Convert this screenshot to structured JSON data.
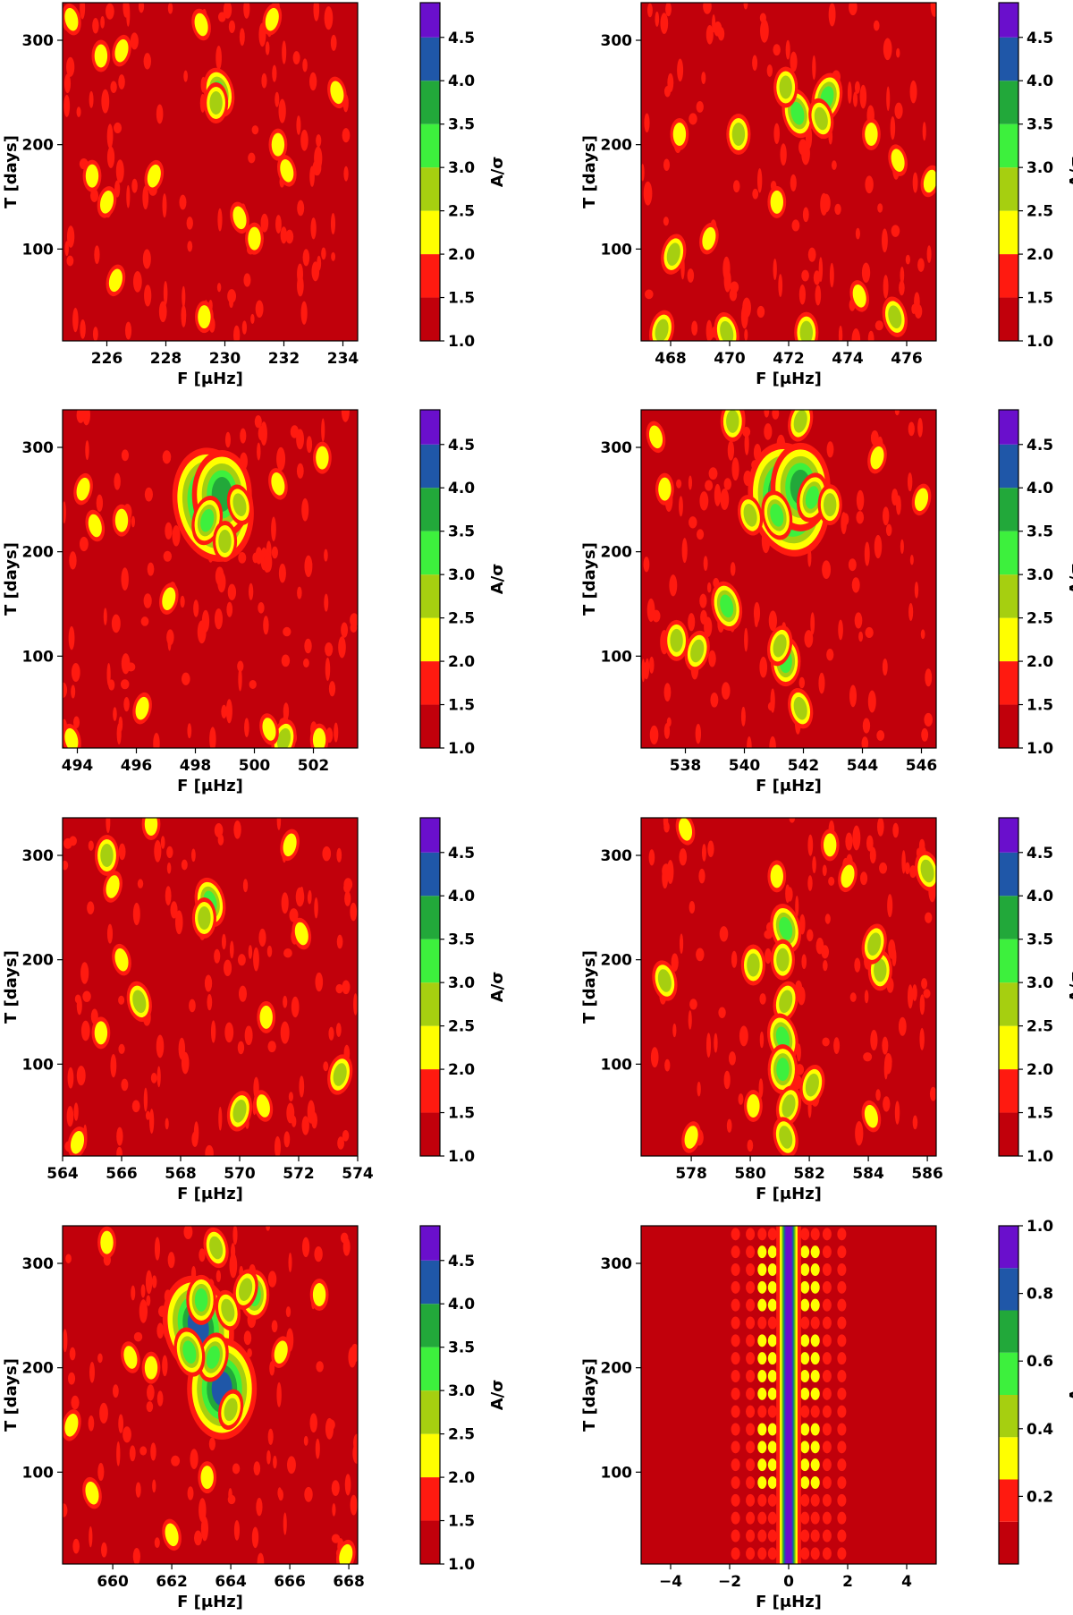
{
  "palette": {
    "background": "#c1000b",
    "sigma_levels": [
      "#c1000b",
      "#ff1a10",
      "#ffff00",
      "#a6cf10",
      "#3df03d",
      "#22a83a",
      "#1f57a8",
      "#6a0fcc"
    ],
    "amp_levels": [
      "#c1000b",
      "#ff1a10",
      "#ffff00",
      "#a6cf10",
      "#3df03d",
      "#22a83a",
      "#1f57a8",
      "#6a0fcc"
    ]
  },
  "chart_data": [
    {
      "type": "heatmap",
      "xlabel": "F [μHz]",
      "ylabel": "T [days]",
      "colorbar_label": "A/σ",
      "xlim": [
        224.5,
        234.5
      ],
      "ylim": [
        12,
        336
      ],
      "xticks": [
        "226",
        "228",
        "230",
        "232",
        "234"
      ],
      "yticks": [
        "100",
        "200",
        "300"
      ],
      "colorbar_range": [
        1.0,
        4.9
      ],
      "colorbar_ticks": [
        "1.0",
        "1.5",
        "2.0",
        "2.5",
        "3.0",
        "3.5",
        "4.0",
        "4.5"
      ],
      "blobs": [
        {
          "f": 229.8,
          "t": 250,
          "level": 4
        },
        {
          "f": 229.7,
          "t": 240,
          "level": 3
        },
        {
          "f": 231.6,
          "t": 320,
          "level": 2
        },
        {
          "f": 229.2,
          "t": 315,
          "level": 2
        },
        {
          "f": 225.5,
          "t": 170,
          "level": 2
        },
        {
          "f": 226.0,
          "t": 145,
          "level": 2
        },
        {
          "f": 232.1,
          "t": 175,
          "level": 2
        },
        {
          "f": 229.3,
          "t": 35,
          "level": 2
        },
        {
          "f": 226.3,
          "t": 70,
          "level": 2
        },
        {
          "f": 224.8,
          "t": 320,
          "level": 2
        },
        {
          "f": 225.8,
          "t": 285,
          "level": 2
        },
        {
          "f": 226.5,
          "t": 290,
          "level": 2
        },
        {
          "f": 230.5,
          "t": 130,
          "level": 2
        },
        {
          "f": 231.0,
          "t": 110,
          "level": 2
        },
        {
          "f": 227.6,
          "t": 170,
          "level": 2
        },
        {
          "f": 233.8,
          "t": 250,
          "level": 2
        },
        {
          "f": 231.8,
          "t": 200,
          "level": 2
        }
      ]
    },
    {
      "type": "heatmap",
      "xlabel": "F [μHz]",
      "ylabel": "T [days]",
      "colorbar_label": "A/σ",
      "xlim": [
        467.0,
        477.0
      ],
      "ylim": [
        12,
        336
      ],
      "xticks": [
        "468",
        "470",
        "472",
        "474",
        "476"
      ],
      "yticks": [
        "100",
        "200",
        "300"
      ],
      "colorbar_range": [
        1.0,
        4.9
      ],
      "colorbar_ticks": [
        "1.0",
        "1.5",
        "2.0",
        "2.5",
        "3.0",
        "3.5",
        "4.0",
        "4.5"
      ],
      "blobs": [
        {
          "f": 472.3,
          "t": 230,
          "level": 4
        },
        {
          "f": 471.9,
          "t": 255,
          "level": 3
        },
        {
          "f": 473.3,
          "t": 245,
          "level": 4
        },
        {
          "f": 473.1,
          "t": 225,
          "level": 3
        },
        {
          "f": 472.6,
          "t": 20,
          "level": 3
        },
        {
          "f": 467.7,
          "t": 22,
          "level": 3
        },
        {
          "f": 469.9,
          "t": 20,
          "level": 3
        },
        {
          "f": 470.3,
          "t": 210,
          "level": 3
        },
        {
          "f": 468.1,
          "t": 95,
          "level": 3
        },
        {
          "f": 475.6,
          "t": 35,
          "level": 3
        },
        {
          "f": 471.6,
          "t": 145,
          "level": 2
        },
        {
          "f": 476.8,
          "t": 165,
          "level": 2
        },
        {
          "f": 475.7,
          "t": 185,
          "level": 2
        },
        {
          "f": 474.8,
          "t": 210,
          "level": 2
        },
        {
          "f": 469.3,
          "t": 110,
          "level": 2
        },
        {
          "f": 474.4,
          "t": 55,
          "level": 2
        },
        {
          "f": 468.3,
          "t": 210,
          "level": 2
        }
      ]
    },
    {
      "type": "heatmap",
      "xlabel": "F [μHz]",
      "ylabel": "T [days]",
      "colorbar_label": "A/σ",
      "xlim": [
        493.5,
        503.5
      ],
      "ylim": [
        12,
        336
      ],
      "xticks": [
        "494",
        "496",
        "498",
        "500",
        "502"
      ],
      "yticks": [
        "100",
        "200",
        "300"
      ],
      "colorbar_range": [
        1.0,
        4.9
      ],
      "colorbar_ticks": [
        "1.0",
        "1.5",
        "2.0",
        "2.5",
        "3.0",
        "3.5",
        "4.0",
        "4.5"
      ],
      "blobs": [
        {
          "f": 498.6,
          "t": 245,
          "level": 7
        },
        {
          "f": 498.9,
          "t": 255,
          "level": 5
        },
        {
          "f": 498.4,
          "t": 230,
          "level": 4
        },
        {
          "f": 499.5,
          "t": 245,
          "level": 3
        },
        {
          "f": 499.0,
          "t": 210,
          "level": 3
        },
        {
          "f": 501.0,
          "t": 20,
          "level": 3
        },
        {
          "f": 500.5,
          "t": 30,
          "level": 2
        },
        {
          "f": 502.2,
          "t": 20,
          "level": 2
        },
        {
          "f": 494.2,
          "t": 260,
          "level": 2
        },
        {
          "f": 494.6,
          "t": 225,
          "level": 2
        },
        {
          "f": 495.5,
          "t": 230,
          "level": 2
        },
        {
          "f": 496.2,
          "t": 50,
          "level": 2
        },
        {
          "f": 500.8,
          "t": 265,
          "level": 2
        },
        {
          "f": 502.3,
          "t": 290,
          "level": 2
        },
        {
          "f": 497.1,
          "t": 155,
          "level": 2
        },
        {
          "f": 493.8,
          "t": 20,
          "level": 2
        }
      ]
    },
    {
      "type": "heatmap",
      "xlabel": "F [μHz]",
      "ylabel": "T [days]",
      "colorbar_label": "A/σ",
      "xlim": [
        536.5,
        546.5
      ],
      "ylim": [
        12,
        336
      ],
      "xticks": [
        "538",
        "540",
        "542",
        "544",
        "546"
      ],
      "yticks": [
        "100",
        "200",
        "300"
      ],
      "colorbar_range": [
        1.0,
        4.9
      ],
      "colorbar_ticks": [
        "1.0",
        "1.5",
        "2.0",
        "2.5",
        "3.0",
        "3.5",
        "4.0",
        "4.5"
      ],
      "blobs": [
        {
          "f": 541.5,
          "t": 250,
          "level": 7
        },
        {
          "f": 541.9,
          "t": 262,
          "level": 5
        },
        {
          "f": 542.3,
          "t": 252,
          "level": 4
        },
        {
          "f": 541.1,
          "t": 235,
          "level": 4
        },
        {
          "f": 541.4,
          "t": 95,
          "level": 4
        },
        {
          "f": 541.2,
          "t": 110,
          "level": 3
        },
        {
          "f": 539.4,
          "t": 148,
          "level": 4
        },
        {
          "f": 539.6,
          "t": 325,
          "level": 3
        },
        {
          "f": 541.9,
          "t": 325,
          "level": 3
        },
        {
          "f": 540.2,
          "t": 235,
          "level": 3
        },
        {
          "f": 537.7,
          "t": 115,
          "level": 3
        },
        {
          "f": 538.4,
          "t": 105,
          "level": 3
        },
        {
          "f": 541.9,
          "t": 50,
          "level": 3
        },
        {
          "f": 542.9,
          "t": 245,
          "level": 3
        },
        {
          "f": 546.0,
          "t": 250,
          "level": 2
        },
        {
          "f": 537.0,
          "t": 310,
          "level": 2
        },
        {
          "f": 537.3,
          "t": 260,
          "level": 2
        },
        {
          "f": 544.5,
          "t": 290,
          "level": 2
        }
      ]
    },
    {
      "type": "heatmap",
      "xlabel": "F [μHz]",
      "ylabel": "T [days]",
      "colorbar_label": "A/σ",
      "xlim": [
        564.0,
        574.0
      ],
      "ylim": [
        12,
        336
      ],
      "xticks": [
        "564",
        "566",
        "568",
        "570",
        "572",
        "574"
      ],
      "yticks": [
        "100",
        "200",
        "300"
      ],
      "colorbar_range": [
        1.0,
        4.9
      ],
      "colorbar_ticks": [
        "1.0",
        "1.5",
        "2.0",
        "2.5",
        "3.0",
        "3.5",
        "4.0",
        "4.5"
      ],
      "blobs": [
        {
          "f": 569.0,
          "t": 255,
          "level": 4
        },
        {
          "f": 568.8,
          "t": 240,
          "level": 3
        },
        {
          "f": 570.0,
          "t": 55,
          "level": 3
        },
        {
          "f": 566.6,
          "t": 160,
          "level": 3
        },
        {
          "f": 565.5,
          "t": 300,
          "level": 3
        },
        {
          "f": 565.7,
          "t": 270,
          "level": 2
        },
        {
          "f": 566.0,
          "t": 200,
          "level": 2
        },
        {
          "f": 565.3,
          "t": 130,
          "level": 2
        },
        {
          "f": 573.4,
          "t": 90,
          "level": 3
        },
        {
          "f": 570.8,
          "t": 60,
          "level": 2
        },
        {
          "f": 567.0,
          "t": 330,
          "level": 2
        },
        {
          "f": 571.7,
          "t": 310,
          "level": 2
        },
        {
          "f": 572.1,
          "t": 225,
          "level": 2
        },
        {
          "f": 570.9,
          "t": 145,
          "level": 2
        },
        {
          "f": 564.5,
          "t": 25,
          "level": 2
        }
      ]
    },
    {
      "type": "heatmap",
      "xlabel": "F [μHz]",
      "ylabel": "T [days]",
      "colorbar_label": "A/σ",
      "xlim": [
        576.3,
        586.3
      ],
      "ylim": [
        12,
        336
      ],
      "xticks": [
        "578",
        "580",
        "582",
        "584",
        "586"
      ],
      "yticks": [
        "100",
        "200",
        "300"
      ],
      "colorbar_range": [
        1.0,
        4.9
      ],
      "colorbar_ticks": [
        "1.0",
        "1.5",
        "2.0",
        "2.5",
        "3.0",
        "3.5",
        "4.0",
        "4.5"
      ],
      "blobs": [
        {
          "f": 581.2,
          "t": 230,
          "level": 4
        },
        {
          "f": 581.1,
          "t": 200,
          "level": 3
        },
        {
          "f": 581.2,
          "t": 160,
          "level": 3
        },
        {
          "f": 581.1,
          "t": 125,
          "level": 4
        },
        {
          "f": 581.1,
          "t": 95,
          "level": 4
        },
        {
          "f": 581.3,
          "t": 60,
          "level": 3
        },
        {
          "f": 581.2,
          "t": 30,
          "level": 3
        },
        {
          "f": 584.4,
          "t": 190,
          "level": 3
        },
        {
          "f": 584.2,
          "t": 215,
          "level": 3
        },
        {
          "f": 577.1,
          "t": 180,
          "level": 3
        },
        {
          "f": 580.1,
          "t": 195,
          "level": 3
        },
        {
          "f": 582.1,
          "t": 80,
          "level": 3
        },
        {
          "f": 586.0,
          "t": 285,
          "level": 3
        },
        {
          "f": 580.1,
          "t": 60,
          "level": 2
        },
        {
          "f": 578.0,
          "t": 30,
          "level": 2
        },
        {
          "f": 584.1,
          "t": 50,
          "level": 2
        },
        {
          "f": 580.9,
          "t": 280,
          "level": 2
        },
        {
          "f": 583.3,
          "t": 280,
          "level": 2
        },
        {
          "f": 577.8,
          "t": 325,
          "level": 2
        },
        {
          "f": 582.7,
          "t": 310,
          "level": 2
        }
      ]
    },
    {
      "type": "heatmap",
      "xlabel": "F [μHz]",
      "ylabel": "T [days]",
      "colorbar_label": "A/σ",
      "xlim": [
        658.3,
        668.3
      ],
      "ylim": [
        12,
        336
      ],
      "xticks": [
        "660",
        "662",
        "664",
        "666",
        "668"
      ],
      "yticks": [
        "100",
        "200",
        "300"
      ],
      "colorbar_range": [
        1.0,
        4.9
      ],
      "colorbar_ticks": [
        "1.0",
        "1.5",
        "2.0",
        "2.5",
        "3.0",
        "3.5",
        "4.0",
        "4.5"
      ],
      "blobs": [
        {
          "f": 662.9,
          "t": 240,
          "level": 6
        },
        {
          "f": 663.7,
          "t": 180,
          "level": 6
        },
        {
          "f": 663.4,
          "t": 210,
          "level": 4
        },
        {
          "f": 662.6,
          "t": 215,
          "level": 4
        },
        {
          "f": 663.0,
          "t": 265,
          "level": 4
        },
        {
          "f": 664.0,
          "t": 160,
          "level": 3
        },
        {
          "f": 663.5,
          "t": 315,
          "level": 3
        },
        {
          "f": 664.8,
          "t": 270,
          "level": 4
        },
        {
          "f": 664.5,
          "t": 275,
          "level": 3
        },
        {
          "f": 663.9,
          "t": 255,
          "level": 3
        },
        {
          "f": 667.0,
          "t": 270,
          "level": 2
        },
        {
          "f": 658.6,
          "t": 145,
          "level": 2
        },
        {
          "f": 659.3,
          "t": 80,
          "level": 2
        },
        {
          "f": 663.2,
          "t": 95,
          "level": 2
        },
        {
          "f": 667.9,
          "t": 20,
          "level": 2
        },
        {
          "f": 660.6,
          "t": 210,
          "level": 2
        },
        {
          "f": 661.3,
          "t": 200,
          "level": 2
        },
        {
          "f": 665.7,
          "t": 215,
          "level": 2
        },
        {
          "f": 662.0,
          "t": 40,
          "level": 2
        },
        {
          "f": 659.8,
          "t": 320,
          "level": 2
        }
      ]
    },
    {
      "type": "heatmap",
      "xlabel": "F [μHz]",
      "ylabel": "T [days]",
      "colorbar_label": "A",
      "xlim": [
        -5.0,
        5.0
      ],
      "ylim": [
        12,
        336
      ],
      "xticks": [
        "−4",
        "−2",
        "0",
        "2",
        "4"
      ],
      "yticks": [
        "100",
        "200",
        "300"
      ],
      "colorbar_range": [
        0.0,
        1.0
      ],
      "colorbar_ticks": [
        "0.2",
        "0.4",
        "0.6",
        "0.8",
        "1.0"
      ],
      "window_function": {
        "center": 0.0,
        "core_half_width": 0.16,
        "sidelobes": [
          -1.3,
          -0.9,
          -0.55,
          0.55,
          0.9,
          1.3,
          1.8,
          -1.8
        ],
        "nodes_t": [
          115,
          200,
          285
        ]
      }
    }
  ]
}
